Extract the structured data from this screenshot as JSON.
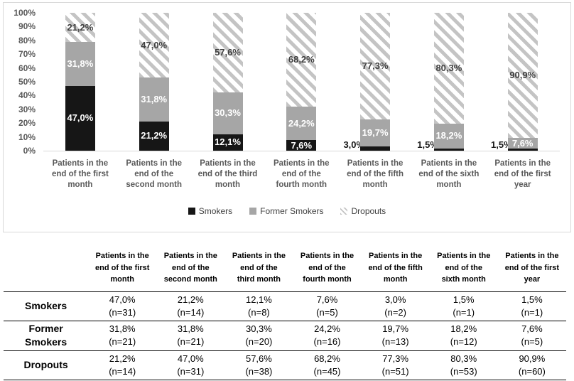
{
  "chart_data": {
    "type": "bar",
    "subtype": "stacked-100-percent",
    "title": "",
    "xlabel": "",
    "ylabel": "",
    "ylim": [
      0,
      100
    ],
    "grid": false,
    "legend_position": "bottom-center",
    "y_ticks": [
      "100%",
      "90%",
      "80%",
      "70%",
      "60%",
      "50%",
      "40%",
      "30%",
      "20%",
      "10%",
      "0%"
    ],
    "categories": [
      "Patients in the\nend of the first\nmonth",
      "Patients in the\nend of the\nsecond month",
      "Patients in the\nend of the third\nmonth",
      "Patients in the\nend of the\nfourth month",
      "Patients in the\nend of the fifth\nmonth",
      "Patients in the\nend of the sixth\nmonth",
      "Patients in the\nend of the first\nyear"
    ],
    "series": [
      {
        "name": "Smokers",
        "fill": "solid",
        "color": "#161616",
        "label_color": "#ffffff",
        "outside_label_color": "#1a1a1a",
        "values": [
          47.0,
          21.2,
          12.1,
          7.6,
          3.0,
          1.5,
          1.5
        ],
        "labels": [
          "47,0%",
          "21,2%",
          "12,1%",
          "7,6%",
          "3,0%",
          "1,5%",
          "1,5%"
        ]
      },
      {
        "name": "Former Smokers",
        "fill": "solid",
        "color": "#a6a6a6",
        "label_color": "#ffffff",
        "values": [
          31.8,
          31.8,
          30.3,
          24.2,
          19.7,
          18.2,
          7.6
        ],
        "labels": [
          "31,8%",
          "31,8%",
          "30,3%",
          "24,2%",
          "19,7%",
          "18,2%",
          "7,6%"
        ]
      },
      {
        "name": "Dropouts",
        "fill": "diagonal-hatch",
        "color": "#c4c4c4",
        "label_color": "#3f3f3f",
        "values": [
          21.2,
          47.0,
          57.6,
          68.2,
          77.3,
          80.3,
          90.9
        ],
        "labels": [
          "21,2%",
          "47,0%",
          "57,6%",
          "68,2%",
          "77,3%",
          "80,3%",
          "90,9%"
        ]
      }
    ]
  },
  "legend": {
    "items": [
      "Smokers",
      "Former Smokers",
      "Dropouts"
    ]
  },
  "table": {
    "col_headers": [
      "Patients in the\nend of the first\nmonth",
      "Patients in the\nend of the\nsecond month",
      "Patients in the\nend of the\nthird month",
      "Patients in the\nend of the\nfourth month",
      "Patients in the\nend of the fifth\nmonth",
      "Patients in the\nend of the\nsixth month",
      "Patients in the\nend of the first\nyear"
    ],
    "rows": [
      {
        "label": "Smokers",
        "cells": [
          {
            "pct": "47,0%",
            "n": "(n=31)"
          },
          {
            "pct": "21,2%",
            "n": "(n=14)"
          },
          {
            "pct": "12,1%",
            "n": "(n=8)"
          },
          {
            "pct": "7,6%",
            "n": "(n=5)"
          },
          {
            "pct": "3,0%",
            "n": "(n=2)"
          },
          {
            "pct": "1,5%",
            "n": "(n=1)"
          },
          {
            "pct": "1,5%",
            "n": "(n=1)"
          }
        ]
      },
      {
        "label": "Former\nSmokers",
        "cells": [
          {
            "pct": "31,8%",
            "n": "(n=21)"
          },
          {
            "pct": "31,8%",
            "n": "(n=21)"
          },
          {
            "pct": "30,3%",
            "n": "(n=20)"
          },
          {
            "pct": "24,2%",
            "n": "(n=16)"
          },
          {
            "pct": "19,7%",
            "n": "(n=13)"
          },
          {
            "pct": "18,2%",
            "n": "(n=12)"
          },
          {
            "pct": "7,6%",
            "n": "(n=5)"
          }
        ]
      },
      {
        "label": "Dropouts",
        "cells": [
          {
            "pct": "21,2%",
            "n": "(n=14)"
          },
          {
            "pct": "47,0%",
            "n": "(n=31)"
          },
          {
            "pct": "57,6%",
            "n": "(n=38)"
          },
          {
            "pct": "68,2%",
            "n": "(n=45)"
          },
          {
            "pct": "77,3%",
            "n": "(n=51)"
          },
          {
            "pct": "80,3%",
            "n": "(n=53)"
          },
          {
            "pct": "90,9%",
            "n": "(n=60)"
          }
        ]
      }
    ]
  },
  "colors": {
    "smokers": "#161616",
    "former_smokers": "#a6a6a6",
    "dropouts_hatch": "#c4c4c4",
    "axis_text": "#595959",
    "chart_border": "#d9d9d9",
    "table_rule": "#000000"
  }
}
